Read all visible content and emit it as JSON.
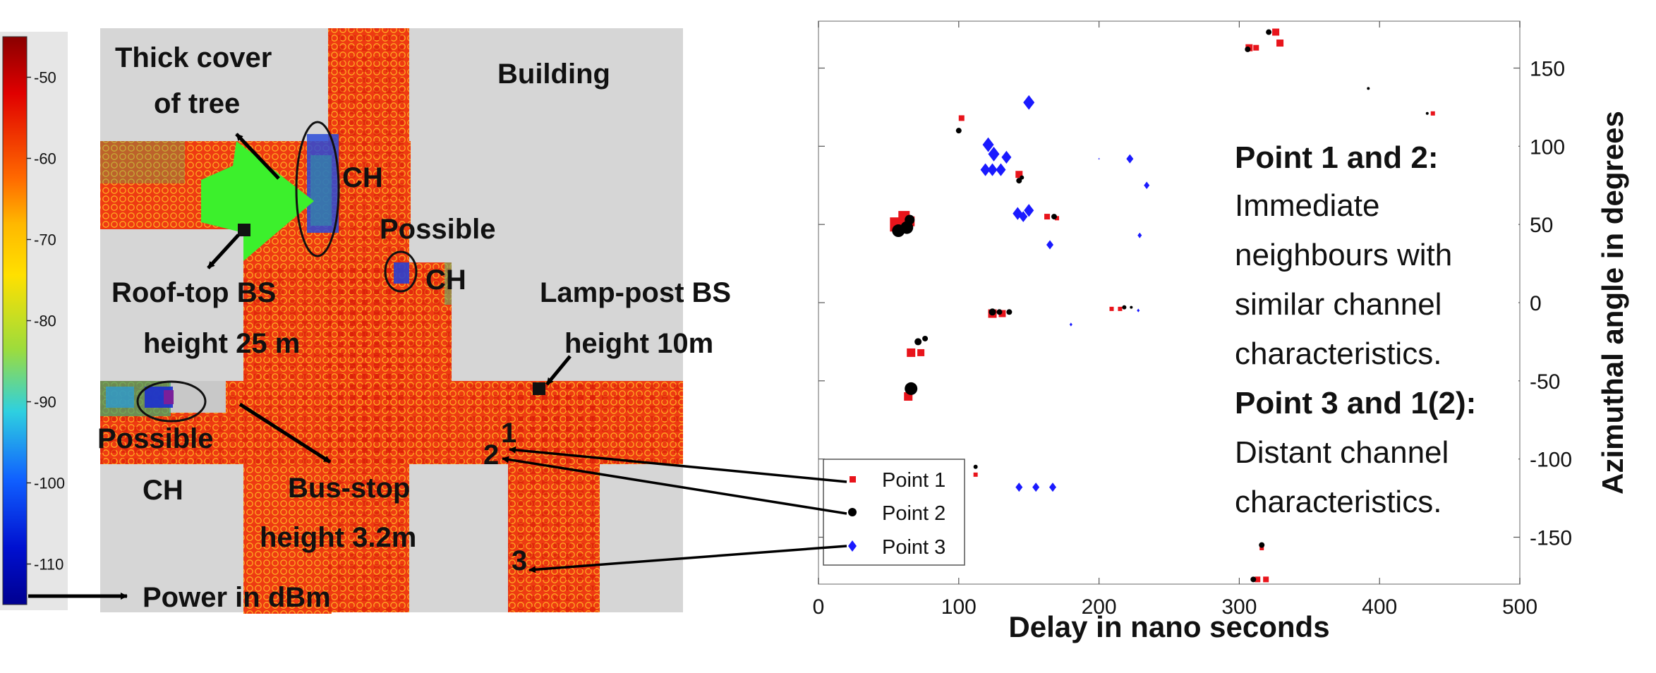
{
  "colorbar": {
    "ticks": [
      "-50",
      "-60",
      "-70",
      "-80",
      "-90",
      "-100",
      "-110"
    ],
    "range": [
      -115,
      -45
    ],
    "colors": [
      "#8a0000",
      "#e00000",
      "#ff6a00",
      "#ffb800",
      "#ffe000",
      "#9ddc3c",
      "#2ed0e0",
      "#1060ff",
      "#0010d0",
      "#000090"
    ]
  },
  "map": {
    "labels": {
      "thick_cover_1": "Thick cover",
      "thick_cover_2": "of tree",
      "building": "Building",
      "ch_top": "CH",
      "possible_right": "Possible",
      "ch_right": "CH",
      "rooftop_1": "Roof-top BS",
      "rooftop_2": "height 25 m",
      "lamppost_1": "Lamp-post BS",
      "lamppost_2": "height 10m",
      "possible_left": "Possible",
      "ch_left": "CH",
      "busstop_1": "Bus-stop",
      "busstop_2": "height 3.2m",
      "power": "Power in dBm",
      "point1": "1",
      "point2": "2",
      "point3": "3"
    }
  },
  "chart_data": {
    "type": "scatter",
    "title": "",
    "xlabel": "Delay in nano seconds",
    "ylabel": "Azimuthal angle in degrees",
    "xlim": [
      0,
      500
    ],
    "ylim": [
      -180,
      180
    ],
    "xticks": [
      0,
      100,
      200,
      300,
      400,
      500
    ],
    "yticks": [
      150,
      100,
      50,
      0,
      -50,
      -100,
      -150
    ],
    "legend": {
      "position": "bottom-left",
      "labels": [
        "Point 1",
        "Point 2",
        "Point 3"
      ]
    },
    "series": [
      {
        "name": "Point 1",
        "color": "#e8141b",
        "marker": "square",
        "points": [
          [
            56,
            50,
            10
          ],
          [
            61,
            55,
            8
          ],
          [
            65,
            52,
            7
          ],
          [
            66,
            -32,
            6
          ],
          [
            73,
            -32,
            5
          ],
          [
            64,
            -60,
            6
          ],
          [
            102,
            118,
            4
          ],
          [
            143,
            82,
            5
          ],
          [
            163,
            55,
            4
          ],
          [
            170,
            54,
            3
          ],
          [
            124,
            -7,
            6
          ],
          [
            131,
            -7,
            5
          ],
          [
            209,
            -4,
            3
          ],
          [
            215,
            -4,
            3
          ],
          [
            112,
            -110,
            3
          ],
          [
            313,
            -177,
            4
          ],
          [
            319,
            -177,
            4
          ],
          [
            316,
            -157,
            3
          ],
          [
            307,
            163,
            5
          ],
          [
            312,
            163,
            4
          ],
          [
            326,
            173,
            5
          ],
          [
            329,
            166,
            5
          ],
          [
            438,
            121,
            3
          ]
        ]
      },
      {
        "name": "Point 2",
        "color": "#000000",
        "marker": "circle",
        "points": [
          [
            57,
            46,
            9
          ],
          [
            63,
            48,
            9
          ],
          [
            65,
            53,
            7
          ],
          [
            66,
            -55,
            9
          ],
          [
            71,
            -25,
            5
          ],
          [
            76,
            -23,
            4
          ],
          [
            100,
            110,
            4
          ],
          [
            143,
            78,
            4
          ],
          [
            145,
            80,
            3
          ],
          [
            168,
            55,
            4
          ],
          [
            124,
            -6,
            5
          ],
          [
            129,
            -6,
            4
          ],
          [
            136,
            -6,
            4
          ],
          [
            218,
            -3,
            3
          ],
          [
            223,
            -3,
            2
          ],
          [
            112,
            -105,
            3
          ],
          [
            310,
            -177,
            4
          ],
          [
            316,
            -155,
            4
          ],
          [
            306,
            162,
            4
          ],
          [
            321,
            173,
            4
          ],
          [
            392,
            137,
            2
          ],
          [
            434,
            121,
            2
          ]
        ]
      },
      {
        "name": "Point 3",
        "color": "#1a1aff",
        "marker": "diamond",
        "points": [
          [
            150,
            128,
            8
          ],
          [
            121,
            101,
            8
          ],
          [
            125,
            95,
            8
          ],
          [
            134,
            93,
            7
          ],
          [
            119,
            85,
            7
          ],
          [
            124,
            85,
            7
          ],
          [
            130,
            85,
            7
          ],
          [
            142,
            57,
            7
          ],
          [
            150,
            59,
            7
          ],
          [
            146,
            55,
            6
          ],
          [
            165,
            37,
            5
          ],
          [
            222,
            92,
            5
          ],
          [
            234,
            75,
            4
          ],
          [
            229,
            43,
            3
          ],
          [
            200,
            92,
            1
          ],
          [
            180,
            -14,
            2
          ],
          [
            228,
            -5,
            2
          ],
          [
            143,
            -118,
            5
          ],
          [
            155,
            -118,
            5
          ],
          [
            167,
            -118,
            5
          ]
        ]
      }
    ]
  },
  "annotations": {
    "line1": "Point 1 and 2:",
    "line2": "Immediate",
    "line3": "neighbours  with",
    "line4": "similar channel",
    "line5": "characteristics.",
    "line6": "Point 3 and 1(2):",
    "line7": "Distant channel",
    "line8": "characteristics."
  }
}
